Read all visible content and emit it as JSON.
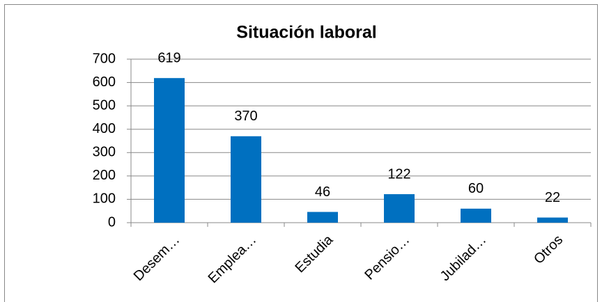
{
  "chart_data": {
    "type": "bar",
    "title": "Situación laboral",
    "categories": [
      "Desem…",
      "Emplea…",
      "Estudia",
      "Pensio…",
      "Jubilad…",
      "Otros"
    ],
    "values": [
      619,
      370,
      46,
      122,
      60,
      22
    ],
    "color": "#0070c0",
    "ylim": [
      0,
      700
    ],
    "yticks": [
      0,
      100,
      200,
      300,
      400,
      500,
      600,
      700
    ],
    "grid": true
  }
}
